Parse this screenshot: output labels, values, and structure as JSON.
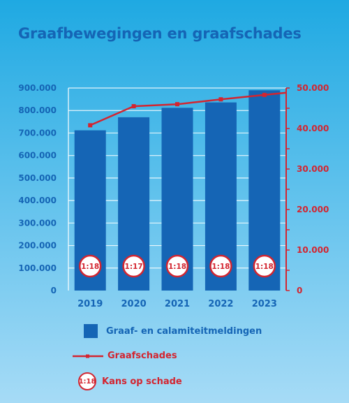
{
  "title": "Graafbewegingen en graafschades",
  "colors": {
    "bar": "#1565b5",
    "line": "#d32530",
    "left_axis_text": "#1565b5",
    "right_axis_text": "#d32530",
    "grid": "#ffffff"
  },
  "chart_data": {
    "type": "bar",
    "title": "Graafbewegingen en graafschades",
    "categories": [
      "2019",
      "2020",
      "2021",
      "2022",
      "2023"
    ],
    "series": [
      {
        "name": "Graaf- en calamiteitmeldingen",
        "type": "bar",
        "axis": "left",
        "values": [
          712000,
          770000,
          812000,
          836000,
          890000
        ]
      },
      {
        "name": "Graafschades",
        "type": "line",
        "axis": "right",
        "values": [
          40800,
          45500,
          46000,
          47200,
          48300
        ]
      }
    ],
    "ratios": {
      "name": "Kans op schade",
      "values": [
        "1:18",
        "1:17",
        "1:18",
        "1:18",
        "1:18"
      ]
    },
    "ylim_left": [
      0,
      900000
    ],
    "ylim_right": [
      0,
      50000
    ],
    "yticks_left": [
      "0",
      "100.000",
      "200.000",
      "300.000",
      "400.000",
      "500.000",
      "600.000",
      "700.000",
      "800.000",
      "900.000"
    ],
    "yticks_right": [
      "0",
      "10.000",
      "20.000",
      "30.000",
      "40.000",
      "50.000"
    ],
    "grid": true,
    "legend_position": "bottom"
  },
  "legend": {
    "bars_label": "Graaf- en calamiteitmeldingen",
    "line_label": "Graafschades",
    "badge_text": "1:18",
    "badge_label": "Kans op schade"
  }
}
